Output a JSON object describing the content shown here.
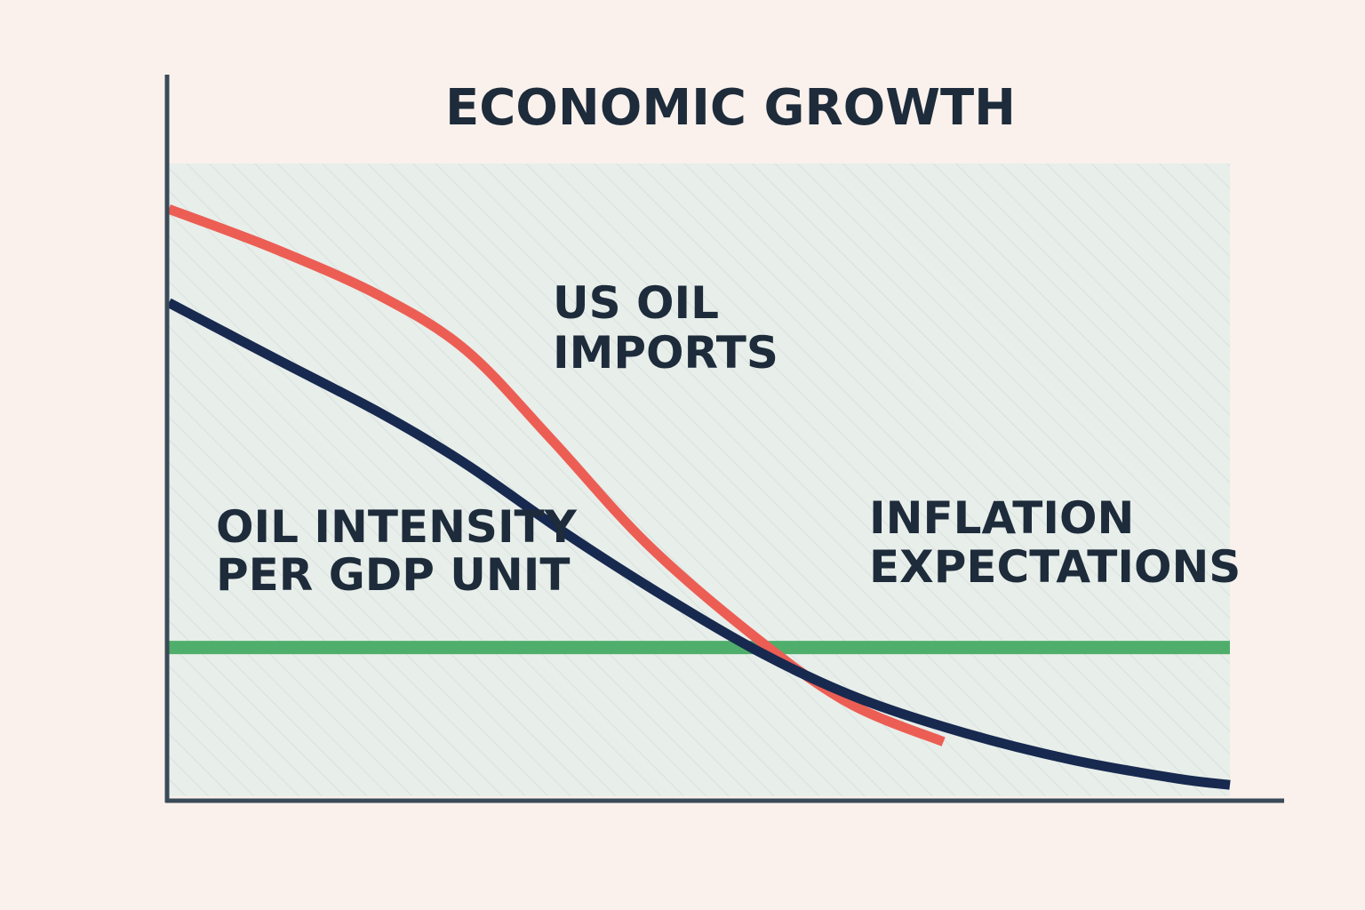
{
  "chart_data": {
    "type": "line",
    "title": "ECONOMIC GROWTH",
    "xlabel": "",
    "ylabel": "",
    "grid": false,
    "xlim": [
      0,
      100
    ],
    "ylim": [
      0,
      100
    ],
    "series": [
      {
        "name": "US OIL IMPORTS",
        "label_lines": [
          "US OIL",
          "IMPORTS"
        ],
        "color": "#ec5e54",
        "x": [
          0,
          10,
          20,
          28,
          36,
          45,
          55,
          64,
          73
        ],
        "y": [
          92.8,
          86.5,
          79,
          70.5,
          56.5,
          40,
          25.5,
          14.8,
          8.6
        ]
      },
      {
        "name": "OIL INTENSITY PER GDP UNIT",
        "label_lines": [
          "OIL INTENSITY",
          "PER GDP UNIT"
        ],
        "color": "#17294f",
        "x": [
          0,
          10,
          20,
          28,
          37,
          46,
          56,
          65,
          75,
          85,
          95,
          100
        ],
        "y": [
          78,
          69.2,
          60.5,
          52.5,
          42,
          32.3,
          22.5,
          15.5,
          10,
          5.8,
          2.8,
          1.8
        ]
      },
      {
        "name": "INFLATION EXPECTATIONS",
        "label_lines": [
          "INFLATION",
          "EXPECTATIONS"
        ],
        "color": "#4fae6b",
        "x": [
          0,
          100
        ],
        "y": [
          23.5,
          23.5
        ]
      }
    ]
  }
}
